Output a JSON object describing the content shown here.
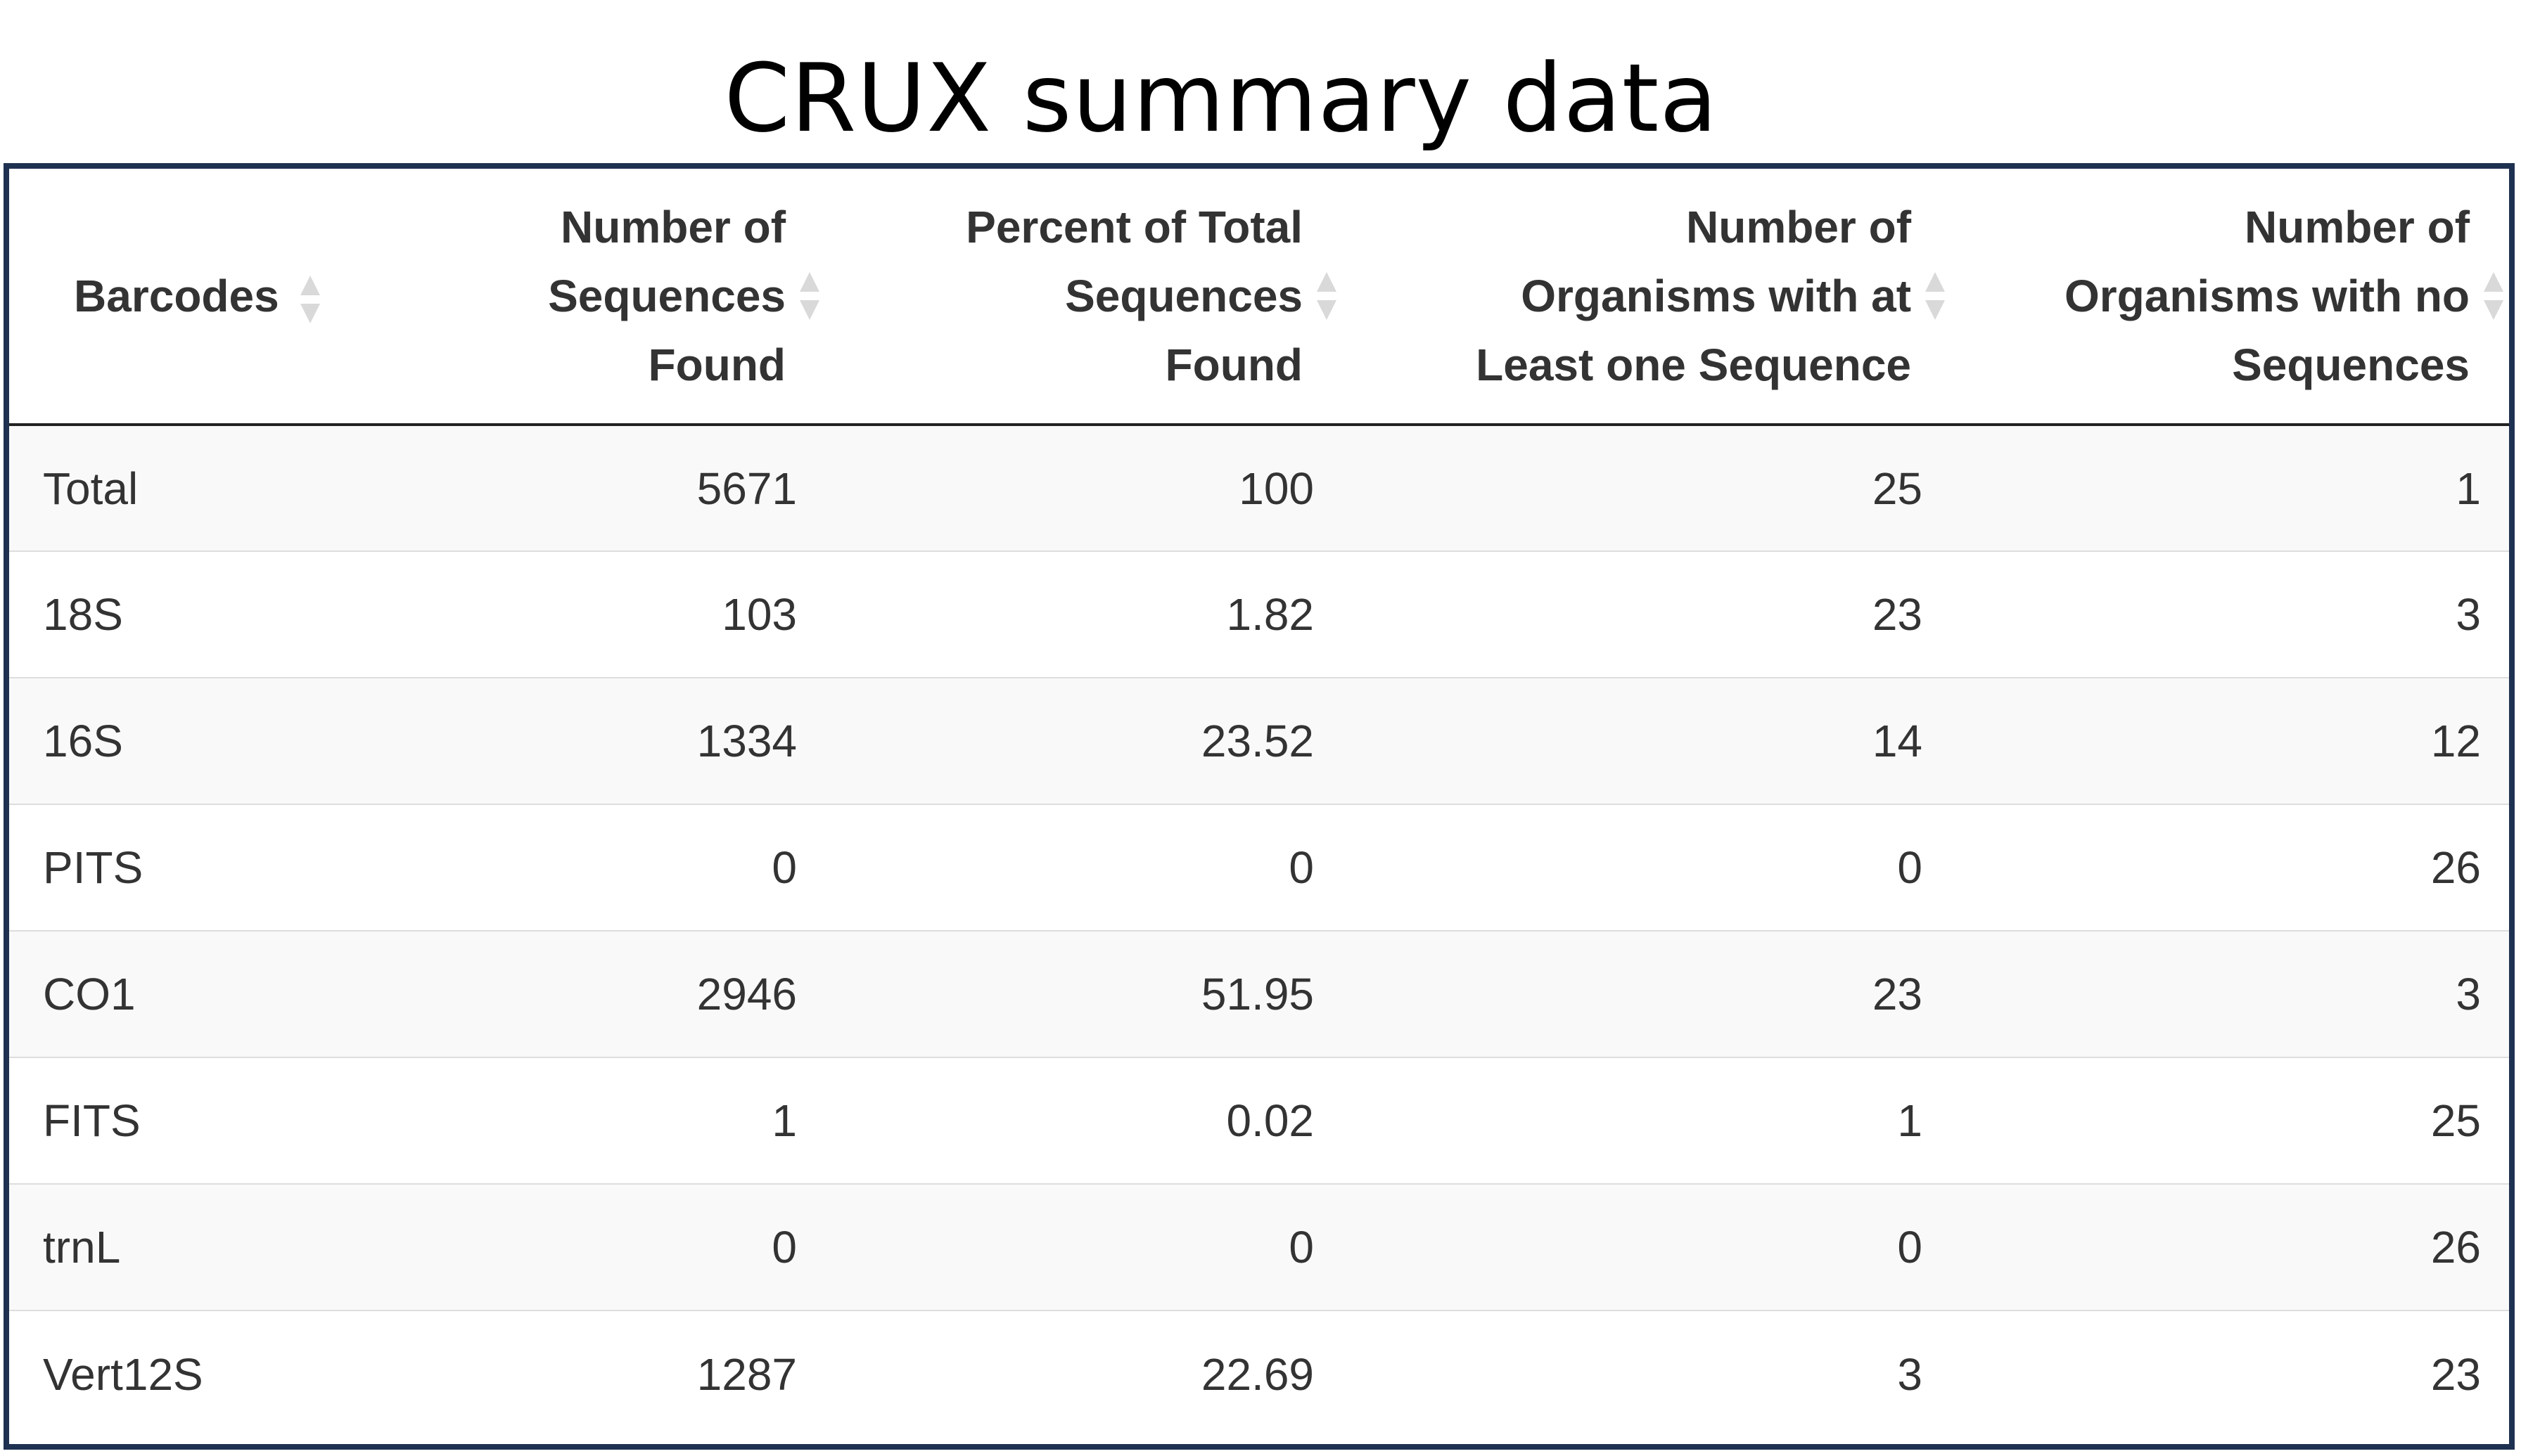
{
  "title": "CRUX summary data",
  "table": {
    "columns": [
      {
        "label": "Barcodes",
        "align": "left",
        "sortable": true
      },
      {
        "label": "Number of Sequences Found",
        "align": "right",
        "sortable": true
      },
      {
        "label": "Percent of Total Sequences Found",
        "align": "right",
        "sortable": true
      },
      {
        "label": "Number of Organisms with at Least one Sequence",
        "align": "right",
        "sortable": true
      },
      {
        "label": "Number of Organisms with no Sequences",
        "align": "right",
        "sortable": true
      }
    ],
    "header_lines": [
      [
        "Barcodes"
      ],
      [
        "Number of",
        "Sequences",
        "Found"
      ],
      [
        "Percent of Total",
        "Sequences",
        "Found"
      ],
      [
        "Number of",
        "Organisms with at",
        "Least one Sequence"
      ],
      [
        "Number of",
        "Organisms with no",
        "Sequences"
      ]
    ],
    "rows": [
      [
        "Total",
        "5671",
        "100",
        "25",
        "1"
      ],
      [
        "18S",
        "103",
        "1.82",
        "23",
        "3"
      ],
      [
        "16S",
        "1334",
        "23.52",
        "14",
        "12"
      ],
      [
        "PITS",
        "0",
        "0",
        "0",
        "26"
      ],
      [
        "CO1",
        "2946",
        "51.95",
        "23",
        "3"
      ],
      [
        "FITS",
        "1",
        "0.02",
        "1",
        "25"
      ],
      [
        "trnL",
        "0",
        "0",
        "0",
        "26"
      ],
      [
        "Vert12S",
        "1287",
        "22.69",
        "3",
        "23"
      ]
    ]
  },
  "icons": {
    "sort": "sort-both-icon"
  },
  "colors": {
    "frame_border": "#1f3150",
    "header_rule": "#222222",
    "row_stripe": "#f9f9f9",
    "row_divider": "#dddddd",
    "sort_icon": "#d9d9d9",
    "text": "#333333"
  }
}
